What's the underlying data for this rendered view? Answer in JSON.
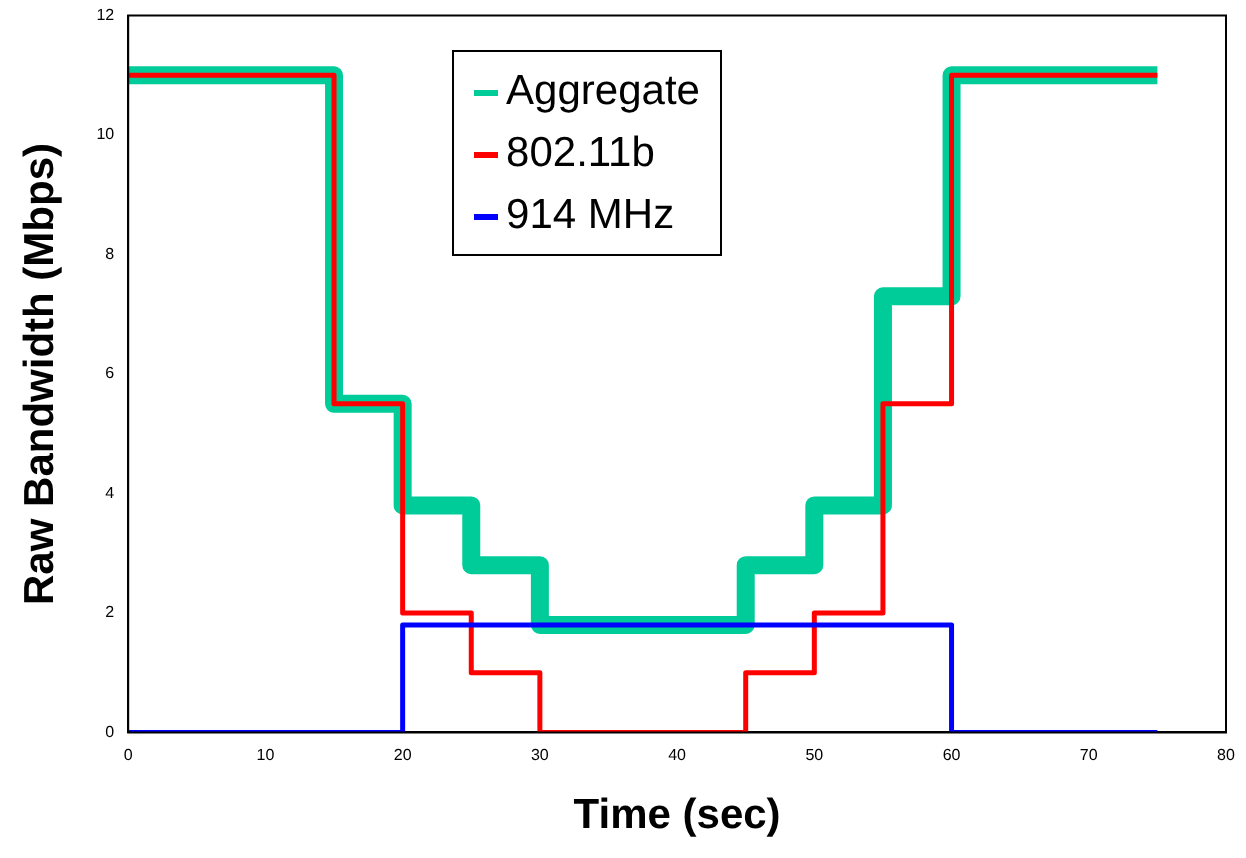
{
  "chart_data": {
    "type": "step",
    "xlabel": "Time (sec)",
    "ylabel": "Raw Bandwidth (Mbps)",
    "xlim": [
      0,
      80
    ],
    "xticks": [
      0,
      10,
      20,
      30,
      40,
      50,
      60,
      70,
      80
    ],
    "ylim": [
      0,
      12
    ],
    "yticks": [
      0,
      2,
      4,
      6,
      8,
      10,
      12
    ],
    "grid": false,
    "legend": "top",
    "marker": "none",
    "line_style": "solid",
    "series": [
      {
        "name": "Aggregate",
        "color": "#00cc99",
        "x": [
          0,
          15,
          20,
          25,
          30,
          45,
          50,
          55,
          60,
          75
        ],
        "values": [
          11,
          5.5,
          3.8,
          2.8,
          1.8,
          2.8,
          3.8,
          7.3,
          11,
          11
        ]
      },
      {
        "name": "802.11b",
        "color": "#ff0000",
        "x": [
          0,
          15,
          20,
          25,
          30,
          45,
          50,
          55,
          60,
          75
        ],
        "values": [
          11,
          5.5,
          2,
          1,
          0,
          1,
          2,
          5.5,
          11,
          11
        ]
      },
      {
        "name": "914 MHz",
        "color": "#0000ff",
        "x": [
          0,
          20,
          60,
          75
        ],
        "values": [
          0,
          1.8,
          0,
          0
        ]
      }
    ]
  }
}
